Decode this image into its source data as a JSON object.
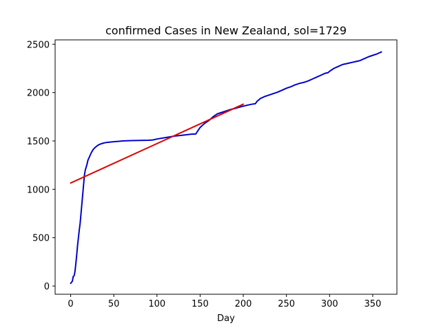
{
  "chart_data": {
    "type": "line",
    "title": "confirmed Cases in New Zealand, sol=1729",
    "xlabel": "Day",
    "ylabel": "",
    "xlim": [
      -18,
      378
    ],
    "ylim": [
      -85,
      2545
    ],
    "xticks": [
      0,
      50,
      100,
      150,
      200,
      250,
      300,
      350
    ],
    "yticks": [
      0,
      500,
      1000,
      1500,
      2000,
      2500
    ],
    "grid": false,
    "series": [
      {
        "color": "#0000cc",
        "x": [
          0,
          2,
          3,
          4,
          5,
          6,
          7,
          8,
          9,
          10,
          11,
          12,
          13,
          14,
          15,
          16,
          17,
          18,
          19,
          20,
          22,
          24,
          26,
          28,
          30,
          32,
          35,
          38,
          40,
          45,
          50,
          55,
          60,
          65,
          70,
          80,
          90,
          95,
          100,
          110,
          120,
          130,
          140,
          145,
          147,
          150,
          155,
          160,
          165,
          170,
          175,
          180,
          185,
          190,
          195,
          200,
          205,
          210,
          214,
          216,
          220,
          225,
          230,
          235,
          240,
          245,
          250,
          255,
          260,
          265,
          270,
          275,
          280,
          285,
          290,
          295,
          298,
          300,
          305,
          310,
          315,
          320,
          325,
          330,
          335,
          340,
          345,
          350,
          355,
          360
        ],
        "y": [
          28,
          50,
          100,
          105,
          150,
          230,
          320,
          420,
          500,
          580,
          650,
          750,
          850,
          950,
          1050,
          1150,
          1200,
          1230,
          1260,
          1300,
          1340,
          1380,
          1410,
          1430,
          1445,
          1458,
          1470,
          1478,
          1482,
          1488,
          1492,
          1496,
          1500,
          1502,
          1504,
          1505,
          1507,
          1510,
          1520,
          1535,
          1550,
          1560,
          1570,
          1572,
          1600,
          1640,
          1680,
          1710,
          1750,
          1780,
          1795,
          1810,
          1825,
          1835,
          1848,
          1860,
          1870,
          1880,
          1885,
          1910,
          1940,
          1960,
          1975,
          1990,
          2005,
          2025,
          2045,
          2060,
          2080,
          2095,
          2105,
          2120,
          2140,
          2160,
          2180,
          2200,
          2205,
          2220,
          2250,
          2270,
          2290,
          2300,
          2310,
          2320,
          2330,
          2350,
          2370,
          2385,
          2400,
          2420
        ]
      },
      {
        "color": "#dd0000",
        "x": [
          0,
          200
        ],
        "y": [
          1065,
          1880
        ]
      }
    ]
  }
}
